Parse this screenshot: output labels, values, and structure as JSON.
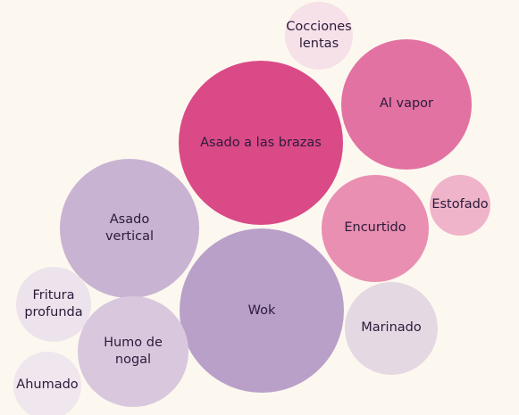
{
  "chart_data": {
    "type": "packed_bubble",
    "categories": [
      "Asado a las brazas",
      "Al vapor",
      "Cocciones lentas",
      "Estofado",
      "Encurtido",
      "Asado vertical",
      "Wok",
      "Marinado",
      "Fritura profunda",
      "Humo de nogal",
      "Ahumado"
    ],
    "values": [
      100,
      63,
      17,
      14,
      43,
      72,
      100,
      32,
      21,
      45,
      17
    ],
    "colors": [
      "#d94a87",
      "#e272a2",
      "#f6e1e8",
      "#efb3ca",
      "#e98fb1",
      "#c9b3d2",
      "#b9a0c9",
      "#e4d8e3",
      "#ede3ec",
      "#d9c8dd",
      "#efe6ee"
    ]
  }
}
